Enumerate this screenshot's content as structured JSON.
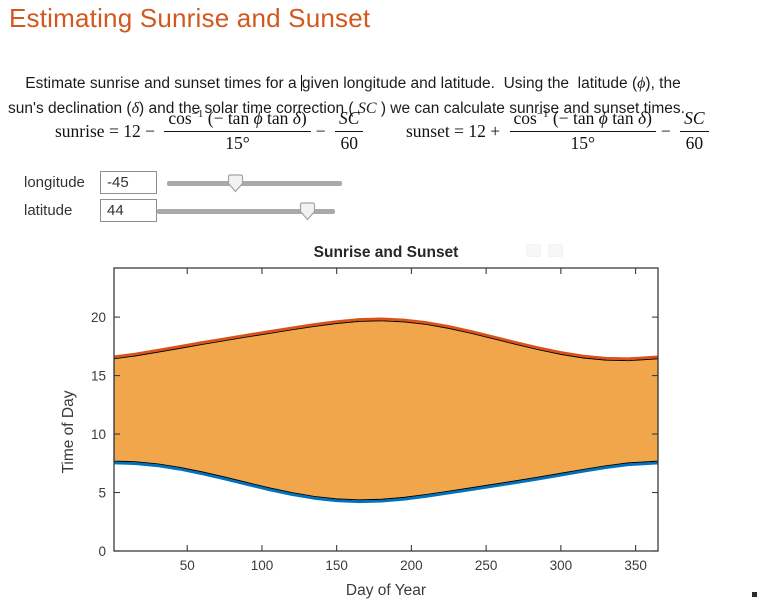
{
  "page": {
    "title": "Estimating Sunrise and Sunset"
  },
  "intro": {
    "p1a": "Estimate sunrise and sunset times for a ",
    "p1b": "given longitude and latitude.  Using the  latitude (",
    "phi": "ϕ",
    "p1c": "), the",
    "p2a": "sun's declination (",
    "delta": "δ",
    "p2b": ") and the solar time correction ( ",
    "sc": "SC",
    "p2c": " ) we can calculate sunrise and sunset times."
  },
  "formulas": {
    "frac_num_cos": "cos",
    "frac_num_sup": "−1",
    "frac_num_open": " (− tan ",
    "phi": "ϕ",
    "frac_num_tan": " tan ",
    "delta": "δ",
    "frac_num_close": ")",
    "frac_den": "15°",
    "sc_num": "SC",
    "sc_den": "60",
    "sunrise": {
      "lhs": "sunrise",
      "eq": " = 12 − ",
      "minus2": "− "
    },
    "sunset": {
      "lhs": "sunset",
      "eq": " = 12 + ",
      "minus2": "− "
    }
  },
  "controls": [
    {
      "label": "longitude",
      "value": "-45",
      "slider_pos": 0.389
    },
    {
      "label": "latitude",
      "value": "44",
      "slider_pos": 0.843
    }
  ],
  "chart_data": {
    "type": "area",
    "title": "Sunrise and Sunset",
    "xlabel": "Day of Year",
    "ylabel": "Time of Day",
    "xlim": [
      1,
      365
    ],
    "ylim": [
      0,
      24.2
    ],
    "xticks": [
      50,
      100,
      150,
      200,
      250,
      300,
      350
    ],
    "yticks": [
      0,
      5,
      10,
      15,
      20
    ],
    "grid": false,
    "legend": "none",
    "days": [
      1,
      15,
      30,
      45,
      60,
      75,
      90,
      105,
      120,
      135,
      150,
      165,
      180,
      195,
      210,
      225,
      240,
      255,
      270,
      285,
      300,
      315,
      330,
      345,
      365
    ],
    "series": [
      {
        "name": "sunset",
        "color": "#D95319",
        "values": [
          16.44,
          16.68,
          17.0,
          17.33,
          17.67,
          17.99,
          18.31,
          18.61,
          18.92,
          19.21,
          19.46,
          19.64,
          19.69,
          19.6,
          19.38,
          19.04,
          18.62,
          18.15,
          17.67,
          17.22,
          16.82,
          16.51,
          16.33,
          16.28,
          16.44
        ]
      },
      {
        "name": "sunrise",
        "color": "#0072BD",
        "values": [
          7.68,
          7.63,
          7.45,
          7.15,
          6.76,
          6.32,
          5.85,
          5.39,
          4.99,
          4.66,
          4.45,
          4.37,
          4.42,
          4.58,
          4.83,
          5.11,
          5.4,
          5.7,
          6.0,
          6.31,
          6.64,
          6.97,
          7.28,
          7.53,
          7.68
        ]
      }
    ],
    "fill_color": "#F2A64C",
    "fill_edge_color": "#000000",
    "axis_color": "#3b3b3b",
    "tick_label_color": "#3b3b3b"
  }
}
